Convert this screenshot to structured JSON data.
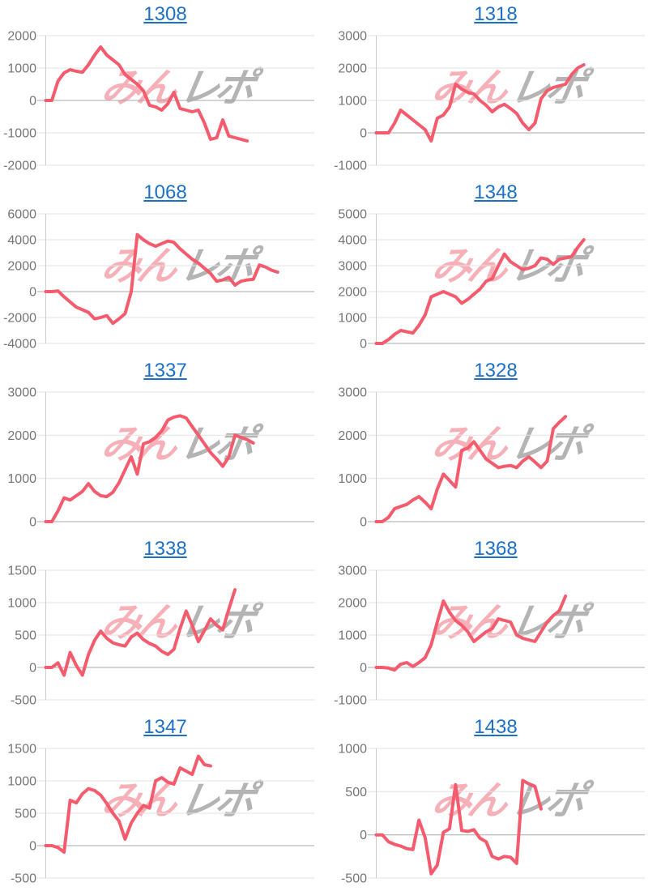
{
  "style": {
    "line_color": "#f45c6e",
    "title_color": "#1c70c8",
    "tick_label_color": "#757575",
    "grid_line_color": "#e3e3e3",
    "zero_line_color": "#a9a9a9",
    "axis_line_color": "#cccccc",
    "background": "#ffffff"
  },
  "watermark": {
    "pink_text": "みん",
    "gray_text": "レポ",
    "pink_color": "#f3a8b1",
    "gray_color": "#a8a8a8"
  },
  "chart_data": [
    {
      "type": "line",
      "title": "1308",
      "xlabel": "",
      "ylabel": "",
      "ylim": [
        -2000,
        2000
      ],
      "y_ticks": [
        2000,
        1000,
        0,
        -1000,
        -2000
      ],
      "x_slots": 45,
      "grid": true,
      "legend": "none",
      "values": [
        0,
        0,
        600,
        850,
        950,
        900,
        870,
        1100,
        1400,
        1650,
        1400,
        1250,
        1100,
        800,
        650,
        500,
        300,
        -150,
        -200,
        -300,
        -100,
        250,
        -250,
        -300,
        -350,
        -300,
        -700,
        -1200,
        -1150,
        -600,
        -1100,
        -1150,
        -1200,
        -1250
      ]
    },
    {
      "type": "line",
      "title": "1318",
      "xlabel": "",
      "ylabel": "",
      "ylim": [
        -1000,
        3000
      ],
      "y_ticks": [
        3000,
        2000,
        1000,
        0,
        -1000
      ],
      "x_slots": 45,
      "grid": true,
      "legend": "none",
      "values": [
        0,
        0,
        0,
        300,
        700,
        550,
        400,
        250,
        100,
        -250,
        450,
        550,
        800,
        1500,
        1350,
        1250,
        1200,
        1000,
        850,
        650,
        800,
        880,
        750,
        600,
        300,
        100,
        300,
        1050,
        1300,
        1400,
        1450,
        1500,
        1800,
        2000,
        2100
      ]
    },
    {
      "type": "line",
      "title": "1068",
      "xlabel": "",
      "ylabel": "",
      "ylim": [
        -4000,
        6000
      ],
      "y_ticks": [
        6000,
        4000,
        2000,
        0,
        -2000,
        -4000
      ],
      "x_slots": 45,
      "grid": true,
      "legend": "none",
      "values": [
        0,
        0,
        50,
        -400,
        -800,
        -1200,
        -1400,
        -1600,
        -2100,
        -2000,
        -1850,
        -2450,
        -2100,
        -1700,
        0,
        4400,
        4000,
        3700,
        3500,
        3700,
        3900,
        3800,
        3300,
        2900,
        2500,
        2200,
        1800,
        1400,
        800,
        900,
        1100,
        500,
        800,
        900,
        950,
        2050,
        1900,
        1650,
        1500
      ]
    },
    {
      "type": "line",
      "title": "1348",
      "xlabel": "",
      "ylabel": "",
      "ylim": [
        0,
        5000
      ],
      "y_ticks": [
        5000,
        4000,
        3000,
        2000,
        1000,
        0
      ],
      "x_slots": 45,
      "grid": true,
      "legend": "none",
      "values": [
        0,
        0,
        150,
        350,
        500,
        450,
        400,
        700,
        1100,
        1800,
        1900,
        2000,
        1900,
        1800,
        1550,
        1700,
        1900,
        2100,
        2400,
        2500,
        3000,
        3450,
        3150,
        3000,
        2850,
        2900,
        3000,
        3300,
        3250,
        3050,
        3250,
        3300,
        3350,
        3700,
        4000
      ]
    },
    {
      "type": "line",
      "title": "1337",
      "xlabel": "",
      "ylabel": "",
      "ylim": [
        0,
        3000
      ],
      "y_ticks": [
        3000,
        2000,
        1000,
        0
      ],
      "x_slots": 45,
      "grid": true,
      "legend": "none",
      "values": [
        0,
        0,
        250,
        550,
        500,
        600,
        700,
        880,
        700,
        600,
        580,
        680,
        900,
        1200,
        1500,
        1100,
        1800,
        1850,
        1950,
        2100,
        2350,
        2420,
        2450,
        2400,
        2200,
        2000,
        1800,
        1600,
        1450,
        1280,
        1500,
        2000,
        1950,
        1900,
        1820
      ]
    },
    {
      "type": "line",
      "title": "1328",
      "xlabel": "",
      "ylabel": "",
      "ylim": [
        0,
        3000
      ],
      "y_ticks": [
        3000,
        2000,
        1000,
        0
      ],
      "x_slots": 45,
      "grid": true,
      "legend": "none",
      "values": [
        0,
        0,
        100,
        300,
        350,
        400,
        500,
        580,
        450,
        300,
        750,
        1100,
        950,
        800,
        1650,
        1700,
        1850,
        1650,
        1450,
        1350,
        1250,
        1280,
        1300,
        1250,
        1400,
        1500,
        1380,
        1250,
        1400,
        2150,
        2300,
        2430
      ]
    },
    {
      "type": "line",
      "title": "1338",
      "xlabel": "",
      "ylabel": "",
      "ylim": [
        -500,
        1500
      ],
      "y_ticks": [
        1500,
        1000,
        500,
        0,
        -500
      ],
      "x_slots": 45,
      "grid": true,
      "legend": "none",
      "values": [
        0,
        0,
        70,
        -120,
        230,
        30,
        -120,
        200,
        420,
        560,
        450,
        380,
        350,
        330,
        470,
        530,
        430,
        370,
        330,
        250,
        200,
        280,
        600,
        870,
        650,
        400,
        570,
        750,
        650,
        580,
        900,
        1200
      ]
    },
    {
      "type": "line",
      "title": "1368",
      "xlabel": "",
      "ylabel": "",
      "ylim": [
        -1000,
        3000
      ],
      "y_ticks": [
        3000,
        2000,
        1000,
        0,
        -1000
      ],
      "x_slots": 45,
      "grid": true,
      "legend": "none",
      "values": [
        0,
        0,
        -20,
        -80,
        100,
        150,
        30,
        150,
        300,
        700,
        1400,
        2050,
        1700,
        1450,
        1300,
        1100,
        800,
        950,
        1100,
        1200,
        1500,
        1450,
        1400,
        1000,
        900,
        850,
        800,
        1100,
        1400,
        1600,
        1750,
        2200
      ]
    },
    {
      "type": "line",
      "title": "1347",
      "xlabel": "",
      "ylabel": "",
      "ylim": [
        -500,
        1500
      ],
      "y_ticks": [
        1500,
        1000,
        500,
        0,
        -500
      ],
      "x_slots": 45,
      "grid": true,
      "legend": "none",
      "values": [
        0,
        0,
        -30,
        -100,
        700,
        660,
        800,
        880,
        850,
        780,
        650,
        500,
        380,
        100,
        350,
        500,
        620,
        580,
        1000,
        1050,
        980,
        950,
        1200,
        1150,
        1100,
        1380,
        1250,
        1230
      ]
    },
    {
      "type": "line",
      "title": "1438",
      "xlabel": "",
      "ylabel": "",
      "ylim": [
        -500,
        1000
      ],
      "y_ticks": [
        1000,
        500,
        0,
        -500
      ],
      "x_slots": 45,
      "grid": true,
      "legend": "none",
      "values": [
        0,
        0,
        -80,
        -110,
        -130,
        -160,
        -170,
        170,
        -30,
        -450,
        -350,
        30,
        70,
        580,
        50,
        40,
        60,
        -40,
        -80,
        -250,
        -280,
        -250,
        -260,
        -330,
        630,
        590,
        560,
        300
      ]
    }
  ]
}
